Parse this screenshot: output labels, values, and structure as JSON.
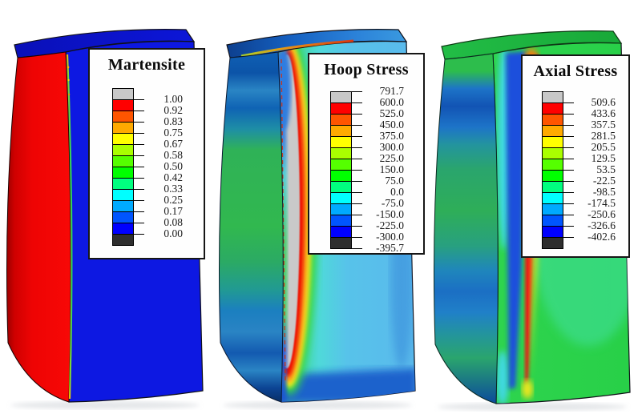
{
  "figure": {
    "background_color": "#ffffff",
    "panels": [
      {
        "name": "martensite",
        "legend": {
          "title": "Martensite",
          "tick_labels": [
            "1.00",
            "0.92",
            "0.83",
            "0.75",
            "0.67",
            "0.58",
            "0.50",
            "0.42",
            "0.33",
            "0.25",
            "0.17",
            "0.08",
            "0.00"
          ],
          "first_tick_boundary": 1
        }
      },
      {
        "name": "hoop-stress",
        "legend": {
          "title": "Hoop Stress",
          "tick_labels": [
            "791.7",
            "600.0",
            "525.0",
            "450.0",
            "375.0",
            "300.0",
            "225.0",
            "150.0",
            "75.0",
            "0.0",
            "-75.0",
            "-150.0",
            "-225.0",
            "-300.0",
            "-395.7"
          ],
          "first_tick_boundary": 0
        }
      },
      {
        "name": "axial-stress",
        "legend": {
          "title": "Axial Stress",
          "tick_labels": [
            "509.6",
            "433.6",
            "357.5",
            "281.5",
            "205.5",
            "129.5",
            "53.5",
            "-22.5",
            "-98.5",
            "-174.5",
            "-250.6",
            "-326.6",
            "-402.6"
          ],
          "first_tick_boundary": 1
        }
      }
    ],
    "colorbar_colors": {
      "above_max": "#c8c8c8",
      "rainbow_high_to_low": [
        "#ff0000",
        "#ff5500",
        "#ffaa00",
        "#ffff00",
        "#aaff00",
        "#55ff00",
        "#00ff00",
        "#00ff7f",
        "#00ffff",
        "#00aaff",
        "#0055ff",
        "#0000ff"
      ],
      "below_min": "#2e2e2e"
    }
  },
  "chart_data": [
    {
      "type": "heatmap",
      "title": "Martensite",
      "legend_ticks": [
        1.0,
        0.92,
        0.83,
        0.75,
        0.67,
        0.58,
        0.5,
        0.42,
        0.33,
        0.25,
        0.17,
        0.08,
        0.0
      ],
      "range": [
        0.0,
        1.0
      ],
      "colormap": "12-band rainbow, red=high to blue=low, grey=above max, dark grey=below min",
      "legend_position": "overlay upper-right",
      "observed_field": "outer cylindrical surface at ~1.0 (red); cut section interior at ~0.0 (blue); thin green/yellow transition sliver along the surface edge"
    },
    {
      "type": "heatmap",
      "title": "Hoop Stress",
      "legend_ticks": [
        791.7,
        600.0,
        525.0,
        450.0,
        375.0,
        300.0,
        225.0,
        150.0,
        75.0,
        0.0,
        -75.0,
        -150.0,
        -225.0,
        -300.0,
        -395.7
      ],
      "range": [
        -395.7,
        791.7
      ],
      "colormap": "12-band rainbow between 600.0 and -300.0, grey above 600.0 (max 791.7), dark grey below -300.0 (min -395.7)",
      "legend_position": "overlay upper-right",
      "observed_field": "tall grey >600 capsule zone near cut-face surface ringed by red, orange, yellow, green; remainder of cut face cyan/light blue (~-75 to -150); outer surface green mid-height with blue bands top and bottom"
    },
    {
      "type": "heatmap",
      "title": "Axial Stress",
      "legend_ticks": [
        509.6,
        433.6,
        357.5,
        281.5,
        205.5,
        129.5,
        53.5,
        -22.5,
        -98.5,
        -174.5,
        -250.6,
        -326.6,
        -402.6
      ],
      "range": [
        -402.6,
        509.6
      ],
      "colormap": "12-band rainbow, grey above 509.6, dark grey below -402.6",
      "legend_position": "overlay upper-right",
      "observed_field": "vertical red tensile band on cut face flanked on the left by a dark blue compressive band and cyan strip; remainder of cut face green (~0 to -98); outer surface green/teal with horizontal blue bands"
    }
  ]
}
